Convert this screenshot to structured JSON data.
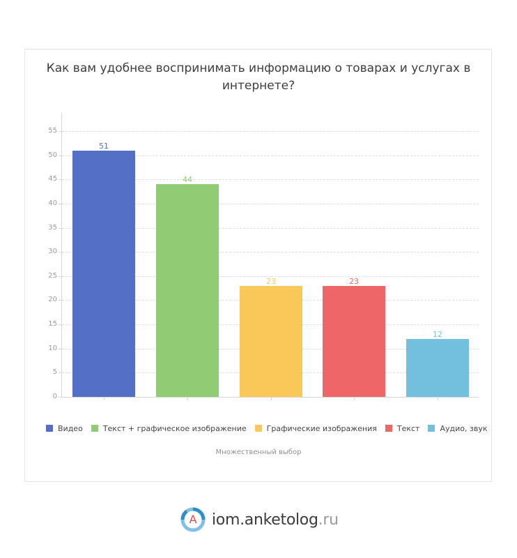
{
  "chart_data": {
    "type": "bar",
    "title": "Как вам удобнее воспринимать информацию о товарах и услугах в интернете?",
    "title_lines": [
      "Как вам удобнее воспринимать информацию о товарах и услугах в",
      "интернете?"
    ],
    "categories": [
      "Видео",
      "Текст + графическое изображение",
      "Графические изображения",
      "Текст",
      "Аудио, звук"
    ],
    "values": [
      51,
      44,
      23,
      23,
      12
    ],
    "colors": [
      "#5470c6",
      "#91cc75",
      "#fac858",
      "#ee6666",
      "#73c0de"
    ],
    "label_colors": [
      "#5470c6",
      "#91cc75",
      "#fac858",
      "#ee6666",
      "#73c0de"
    ],
    "xlabel": "",
    "ylabel": "",
    "ylim": [
      0,
      55
    ],
    "yticks": [
      0,
      5,
      10,
      15,
      20,
      25,
      30,
      35,
      40,
      45,
      50,
      55
    ],
    "grid": true,
    "legend_position": "bottom",
    "footnote": "Множественный выбор"
  },
  "legend": [
    {
      "label": "Видео",
      "color": "#5470c6"
    },
    {
      "label": "Текст + графическое изображение",
      "color": "#91cc75"
    },
    {
      "label": "Графические изображения",
      "color": "#fac858"
    },
    {
      "label": "Текст",
      "color": "#ee6666"
    },
    {
      "label": "Аудио, звук",
      "color": "#73c0de"
    }
  ],
  "footer": {
    "logo_main": "iom.anketolog",
    "logo_tld": ".ru",
    "logo_letter": "A"
  }
}
